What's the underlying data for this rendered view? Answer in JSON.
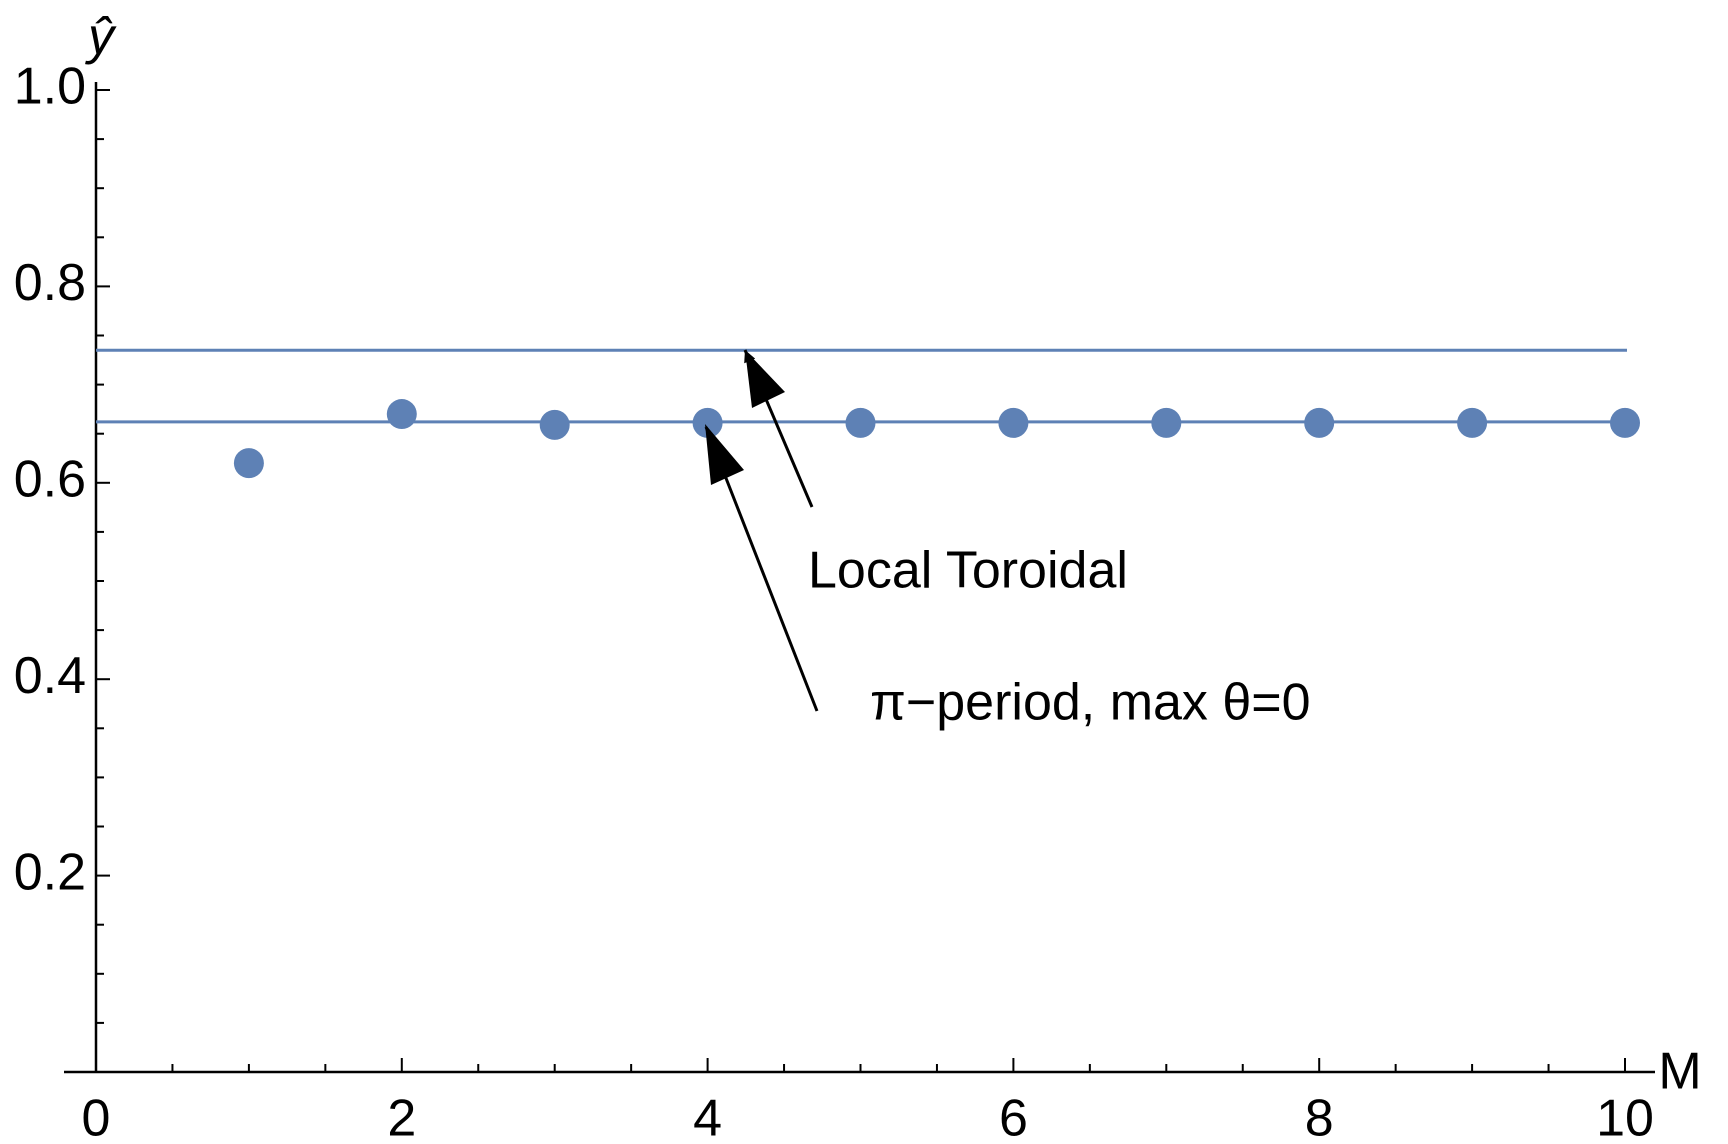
{
  "chart_data": {
    "type": "scatter",
    "x_label": "M",
    "y_label": "ŷ",
    "x": [
      1,
      2,
      3,
      4,
      5,
      6,
      7,
      8,
      9,
      10
    ],
    "series": [
      {
        "color": "#5e81b5",
        "values": [
          0.62,
          0.67,
          0.659,
          0.661,
          0.661,
          0.661,
          0.661,
          0.661,
          0.661,
          0.661
        ]
      }
    ],
    "reference_lines": [
      {
        "value": 0.735,
        "color": "#5e81b5"
      },
      {
        "value": 0.662,
        "color": "#5e81b5"
      }
    ],
    "annotations": [
      "Local Toroidal",
      "π−period, max θ=0"
    ],
    "xlim": [
      0,
      10
    ],
    "ylim": [
      0,
      1
    ],
    "xticks": [
      0,
      2,
      4,
      6,
      8,
      10
    ],
    "yticks": [
      0.2,
      0.4,
      0.6,
      0.8,
      {
        "value": 1,
        "label": "1.0"
      }
    ],
    "grid": false
  }
}
